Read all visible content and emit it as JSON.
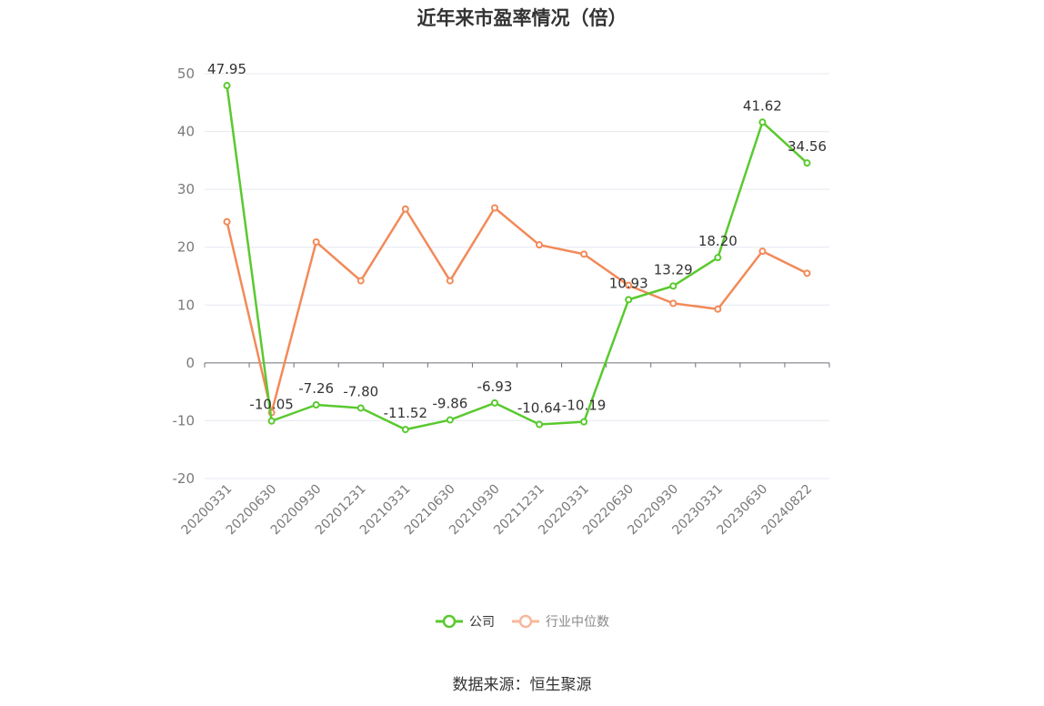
{
  "chart_data": {
    "type": "line",
    "title": "近年来市盈率情况（倍）",
    "categories": [
      "20200331",
      "20200630",
      "20200930",
      "20201231",
      "20210331",
      "20210630",
      "20210930",
      "20211231",
      "20220331",
      "20220630",
      "20220930",
      "20230331",
      "20230630",
      "20240822"
    ],
    "series": [
      {
        "name": "公司",
        "color": "#5ac92f",
        "values": [
          47.95,
          -10.05,
          -7.26,
          -7.8,
          -11.52,
          -9.86,
          -6.93,
          -10.64,
          -10.19,
          10.93,
          13.29,
          18.2,
          41.62,
          34.56
        ],
        "labels": [
          "47.95",
          "-10.05",
          "-7.26",
          "-7.80",
          "-11.52",
          "-9.86",
          "-6.93",
          "-10.64",
          "-10.19",
          "10.93",
          "13.29",
          "18.20",
          "41.62",
          "34.56"
        ],
        "show_labels": true
      },
      {
        "name": "行业中位数",
        "color": "#f28a59",
        "values": [
          24.4,
          -8.6,
          20.9,
          14.2,
          26.6,
          14.2,
          26.8,
          20.4,
          18.8,
          13.4,
          10.3,
          9.3,
          19.3,
          15.5
        ],
        "show_labels": false
      }
    ],
    "ylim": [
      -20,
      50
    ],
    "yticks": [
      -20,
      -10,
      0,
      10,
      20,
      30,
      40,
      50
    ],
    "grid": true,
    "legend_position": "bottom-center"
  },
  "source_text": "数据来源：恒生聚源"
}
